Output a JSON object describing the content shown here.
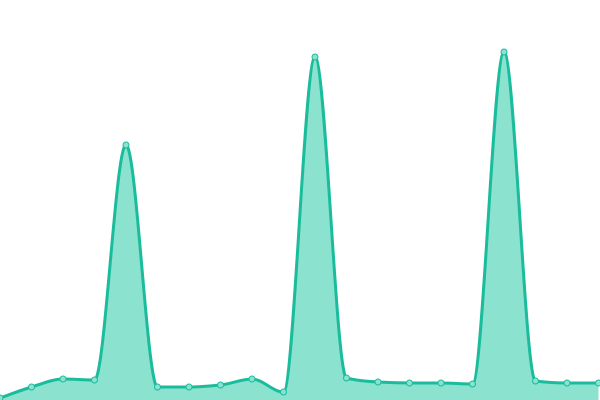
{
  "chart_data": {
    "type": "area",
    "title": "",
    "xlabel": "",
    "ylabel": "",
    "x": [
      0,
      1,
      2,
      3,
      4,
      5,
      6,
      7,
      8,
      9,
      10,
      11,
      12,
      13,
      14,
      15,
      16,
      17,
      18,
      19
    ],
    "series": [
      {
        "values": [
          2,
          13,
          21,
          20,
          255,
          13,
          13,
          15,
          21,
          8,
          343,
          22,
          18,
          17,
          17,
          16,
          348,
          19,
          17,
          17
        ]
      }
    ],
    "ylim": [
      0,
      400
    ],
    "grid": false,
    "axes_visible": false,
    "legend": "none",
    "colors": {
      "line": "#1abc9c",
      "fill": "#8ae2cf",
      "point_fill": "#8ae2cf",
      "point_stroke": "#1abc9c"
    }
  }
}
